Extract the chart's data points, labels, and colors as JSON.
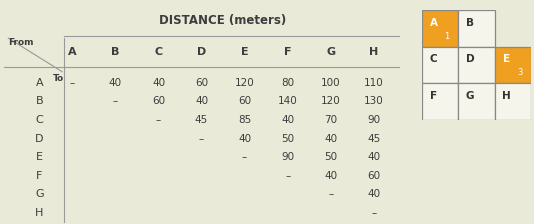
{
  "title": "DISTANCE (meters)",
  "col_headers": [
    "A",
    "B",
    "C",
    "D",
    "E",
    "F",
    "G",
    "H"
  ],
  "row_headers": [
    "A",
    "B",
    "C",
    "D",
    "E",
    "F",
    "G",
    "H"
  ],
  "from_label": "From",
  "to_label": "To",
  "table_data": [
    [
      "–",
      "40",
      "40",
      "60",
      "120",
      "80",
      "100",
      "110"
    ],
    [
      "",
      "–",
      "60",
      "40",
      "60",
      "140",
      "120",
      "130"
    ],
    [
      "",
      "",
      "–",
      "45",
      "85",
      "40",
      "70",
      "90"
    ],
    [
      "",
      "",
      "",
      "–",
      "40",
      "50",
      "40",
      "45"
    ],
    [
      "",
      "",
      "",
      "",
      "–",
      "90",
      "50",
      "40"
    ],
    [
      "",
      "",
      "",
      "",
      "",
      "–",
      "40",
      "60"
    ],
    [
      "",
      "",
      "",
      "",
      "",
      "",
      "–",
      "40"
    ],
    [
      "",
      "",
      "",
      "",
      "",
      "",
      "",
      "–"
    ]
  ],
  "bg_color": "#eaead8",
  "header_text_color": "#3d3d3d",
  "col_header_color": "#3d3d3d",
  "line_color": "#999999",
  "grid_layout": {
    "cells": [
      {
        "label": "A",
        "row": 0,
        "col": 0,
        "highlight": true,
        "sub": "1"
      },
      {
        "label": "B",
        "row": 0,
        "col": 1,
        "highlight": false,
        "sub": ""
      },
      {
        "label": "C",
        "row": 1,
        "col": 0,
        "highlight": false,
        "sub": ""
      },
      {
        "label": "D",
        "row": 1,
        "col": 1,
        "highlight": false,
        "sub": ""
      },
      {
        "label": "E",
        "row": 1,
        "col": 2,
        "highlight": true,
        "sub": "3"
      },
      {
        "label": "F",
        "row": 2,
        "col": 0,
        "highlight": false,
        "sub": ""
      },
      {
        "label": "G",
        "row": 2,
        "col": 1,
        "highlight": false,
        "sub": ""
      },
      {
        "label": "H",
        "row": 2,
        "col": 2,
        "highlight": false,
        "sub": ""
      }
    ],
    "highlight_color": "#f0a020",
    "cell_bg": "#f5f5ec",
    "cell_border": "#888888",
    "text_color": "#333333",
    "highlight_text": "#ffffff"
  },
  "title_fontsize": 8.5,
  "header_fontsize": 8,
  "data_fontsize": 7.5,
  "row_label_fontsize": 8
}
